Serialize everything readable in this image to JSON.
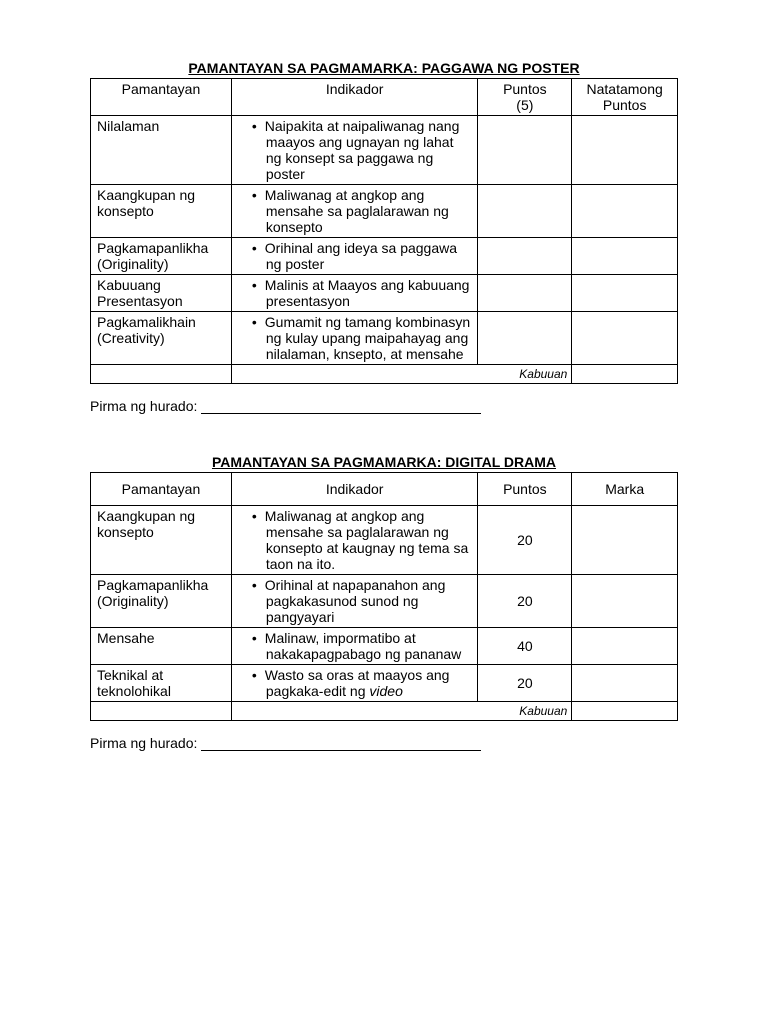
{
  "table1": {
    "title": "PAMANTAYAN SA PAGMAMARKA: PAGGAWA NG POSTER",
    "headers": {
      "pamantayan": "Pamantayan",
      "indikador": "Indikador",
      "puntos_line1": "Puntos",
      "puntos_line2": "(5)",
      "natatamong_line1": "Natatamong",
      "natatamong_line2": "Puntos"
    },
    "rows": [
      {
        "pamantayan": "Nilalaman",
        "indikador": "Naipakita at naipaliwanag nang maayos ang ugnayan ng lahat ng konsept sa paggawa ng poster"
      },
      {
        "pamantayan": "Kaangkupan ng konsepto",
        "indikador": "Maliwanag at angkop ang mensahe sa paglalarawan ng konsepto"
      },
      {
        "pamantayan": "Pagkamapanlikha (Originality)",
        "indikador": "Orihinal ang ideya sa paggawa ng poster"
      },
      {
        "pamantayan": "Kabuuang Presentasyon",
        "indikador": "Malinis at Maayos ang kabuuang presentasyon"
      },
      {
        "pamantayan": "Pagkamalikhain (Creativity)",
        "indikador": "Gumamit ng tamang kombinasyn ng kulay upang maipahayag ang nilalaman, knsepto, at mensahe"
      }
    ],
    "kabuuan": "Kabuuan"
  },
  "signature_label": "Pirma ng hurado: ",
  "table2": {
    "title": "PAMANTAYAN SA PAGMAMARKA: DIGITAL DRAMA",
    "headers": {
      "pamantayan": "Pamantayan",
      "indikador": "Indikador",
      "puntos": "Puntos",
      "marka": "Marka"
    },
    "rows": [
      {
        "pamantayan": "Kaangkupan ng konsepto",
        "indikador": "Maliwanag at angkop ang mensahe sa paglalarawan ng konsepto at kaugnay ng tema sa taon na ito.",
        "puntos": "20"
      },
      {
        "pamantayan": "Pagkamapanlikha (Originality)",
        "indikador": "Orihinal at napapanahon ang pagkakasunod sunod ng pangyayari",
        "puntos": "20"
      },
      {
        "pamantayan": "Mensahe",
        "indikador": "Malinaw, impormatibo at nakakapagpabago ng pananaw",
        "puntos": "40"
      },
      {
        "pamantayan": "Teknikal at teknolohikal",
        "indikador_html": "Wasto sa oras at maayos ang pagkaka-edit ng <i>video</i>",
        "puntos": "20"
      }
    ],
    "kabuuan": "Kabuuan"
  }
}
